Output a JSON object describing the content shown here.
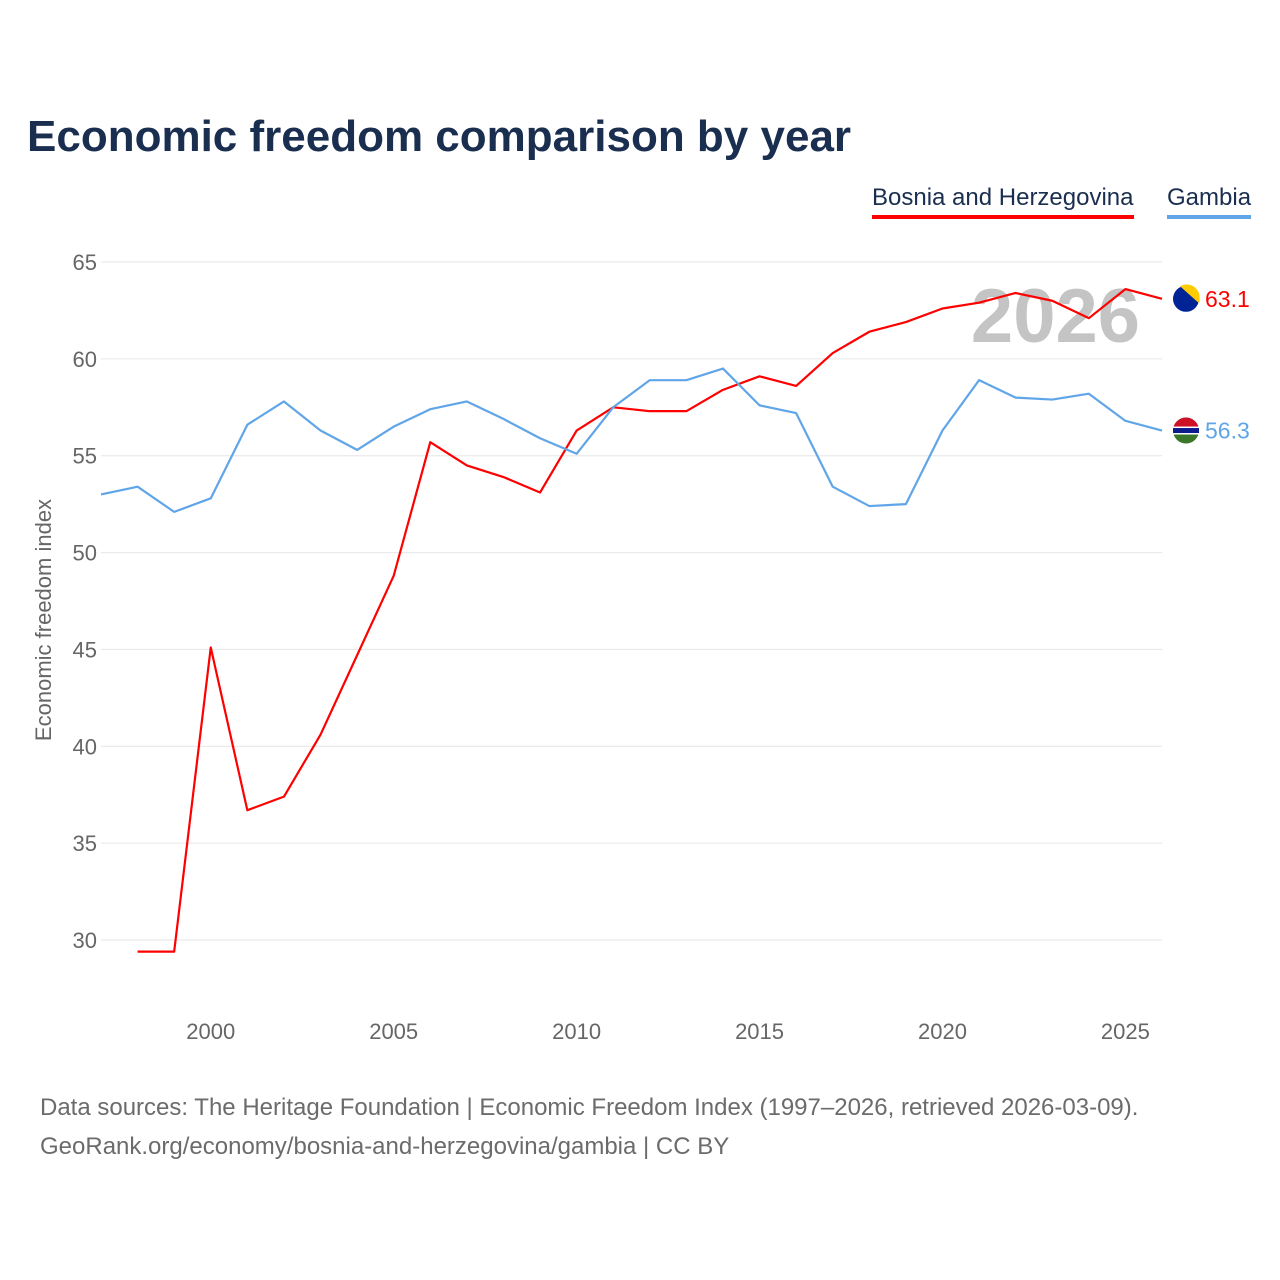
{
  "chart_data": {
    "type": "line",
    "title": "Economic freedom comparison by year",
    "xlabel": "",
    "ylabel": "Economic freedom index",
    "ylim": [
      30,
      65
    ],
    "xlim": [
      1997,
      2026
    ],
    "yticks": [
      "30",
      "35",
      "40",
      "45",
      "50",
      "55",
      "60",
      "65"
    ],
    "xticks": [
      "2000",
      "2005",
      "2010",
      "2015",
      "2020",
      "2025"
    ],
    "grid": true,
    "legend_position": "top-right",
    "year_watermark": "2026",
    "series": [
      {
        "name": "Bosnia and Herzegovina",
        "color": "#ff0000",
        "end_label": "63.1",
        "flag": "bosnia-flag",
        "x": [
          1998,
          1999,
          2000,
          2001,
          2002,
          2003,
          2004,
          2005,
          2006,
          2007,
          2008,
          2009,
          2010,
          2011,
          2012,
          2013,
          2014,
          2015,
          2016,
          2017,
          2018,
          2019,
          2020,
          2021,
          2022,
          2023,
          2024,
          2025,
          2026
        ],
        "values": [
          29.4,
          29.4,
          45.1,
          36.7,
          37.4,
          40.6,
          44.7,
          48.8,
          55.7,
          54.5,
          53.9,
          53.1,
          56.3,
          57.5,
          57.3,
          57.3,
          58.4,
          59.1,
          58.6,
          60.3,
          61.4,
          61.9,
          62.6,
          62.9,
          63.4,
          63.0,
          62.1,
          63.6,
          63.1
        ]
      },
      {
        "name": "Gambia",
        "color": "#60a5e8",
        "end_label": "56.3",
        "flag": "gambia-flag",
        "x": [
          1997,
          1998,
          1999,
          2000,
          2001,
          2002,
          2003,
          2004,
          2005,
          2006,
          2007,
          2008,
          2009,
          2010,
          2011,
          2012,
          2013,
          2014,
          2015,
          2016,
          2017,
          2018,
          2019,
          2020,
          2021,
          2022,
          2023,
          2024,
          2025,
          2026
        ],
        "values": [
          53.0,
          53.4,
          52.1,
          52.8,
          56.6,
          57.8,
          56.3,
          55.3,
          56.5,
          57.4,
          57.8,
          56.9,
          55.9,
          55.1,
          57.5,
          58.9,
          58.9,
          59.5,
          57.6,
          57.2,
          53.4,
          52.4,
          52.5,
          56.3,
          58.9,
          58.0,
          57.9,
          58.2,
          56.8,
          56.3
        ]
      }
    ]
  },
  "footer": {
    "line1": "Data sources: The Heritage Foundation | Economic Freedom Index (1997–2026, retrieved 2026-03-09).",
    "line2": "GeoRank.org/economy/bosnia-and-herzegovina/gambia | CC BY"
  }
}
